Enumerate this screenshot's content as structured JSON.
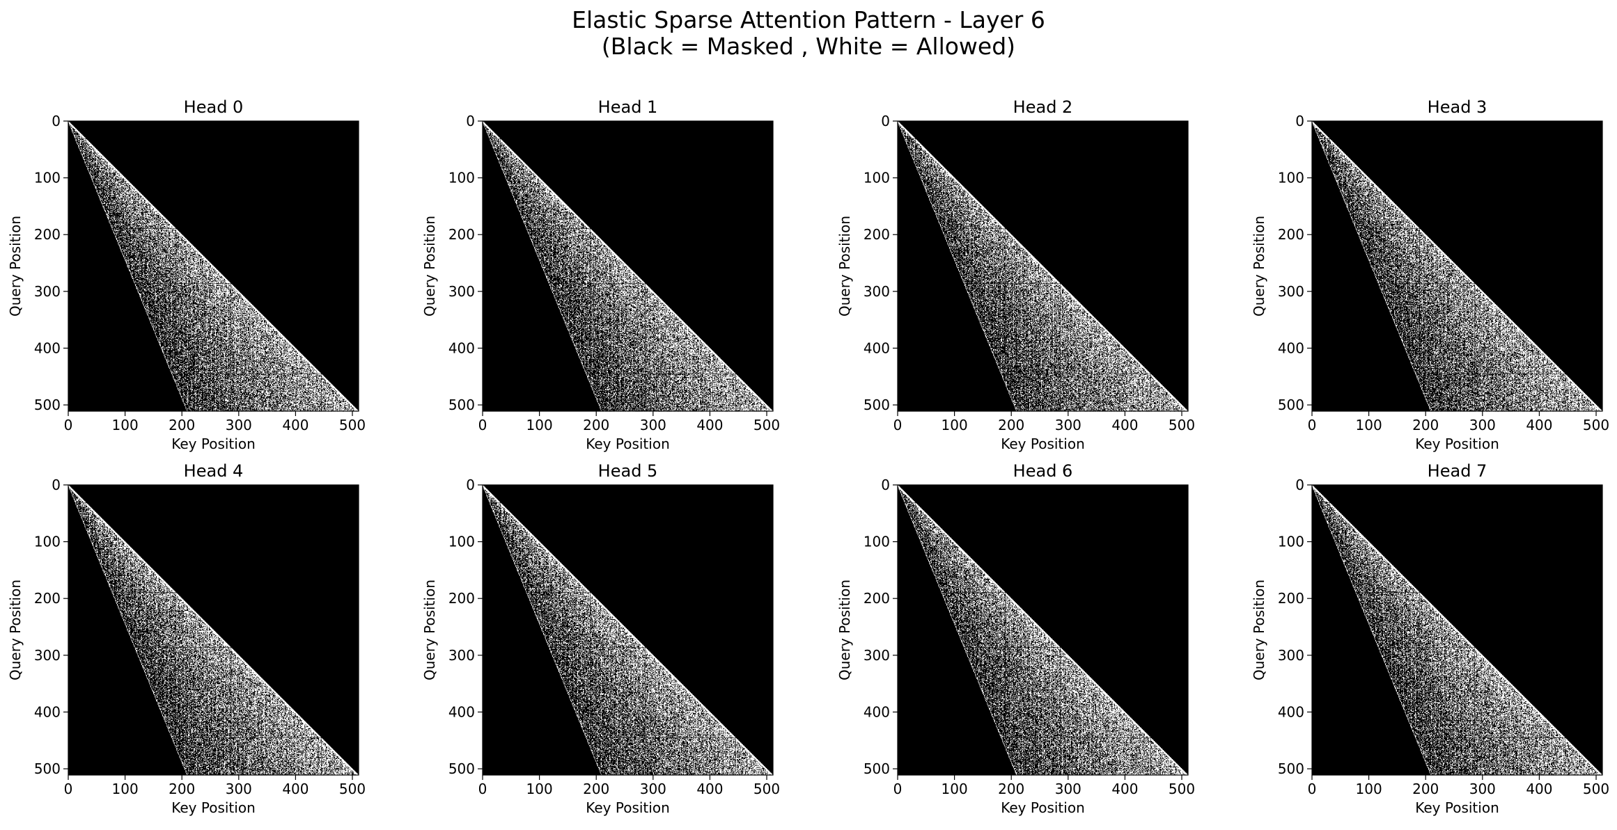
{
  "figure": {
    "title_line1": "Elastic Sparse Attention Pattern - Layer 6",
    "title_line2": "(Black = Masked , White = Allowed)"
  },
  "colors": {
    "masked": "#000000",
    "allowed": "#ffffff",
    "axis": "#000000",
    "background": "#ffffff"
  },
  "chart_data": [
    {
      "type": "heatmap",
      "title": "Head 0",
      "xlabel": "Key Position",
      "ylabel": "Query Position",
      "xticks": [
        0,
        100,
        200,
        300,
        400,
        500
      ],
      "yticks": [
        0,
        100,
        200,
        300,
        400,
        500
      ],
      "xlim": [
        0,
        511
      ],
      "ylim": [
        511,
        0
      ],
      "seq_len": 512,
      "values_legend": {
        "black": "Masked",
        "white": "Allowed"
      },
      "pattern": {
        "allowed_region": "band from diagonal (key = query) down to key ≈ 0.41 × query",
        "density_near_diagonal": "dense",
        "density_far": "sparse"
      }
    },
    {
      "type": "heatmap",
      "title": "Head 1",
      "xlabel": "Key Position",
      "ylabel": "Query Position",
      "xticks": [
        0,
        100,
        200,
        300,
        400,
        500
      ],
      "yticks": [
        0,
        100,
        200,
        300,
        400,
        500
      ],
      "xlim": [
        0,
        511
      ],
      "ylim": [
        511,
        0
      ],
      "seq_len": 512,
      "values_legend": {
        "black": "Masked",
        "white": "Allowed"
      },
      "pattern": {
        "allowed_region": "band from diagonal (key = query) down to key ≈ 0.41 × query",
        "density_near_diagonal": "dense",
        "density_far": "sparse"
      }
    },
    {
      "type": "heatmap",
      "title": "Head 2",
      "xlabel": "Key Position",
      "ylabel": "Query Position",
      "xticks": [
        0,
        100,
        200,
        300,
        400,
        500
      ],
      "yticks": [
        0,
        100,
        200,
        300,
        400,
        500
      ],
      "xlim": [
        0,
        511
      ],
      "ylim": [
        511,
        0
      ],
      "seq_len": 512,
      "values_legend": {
        "black": "Masked",
        "white": "Allowed"
      },
      "pattern": {
        "allowed_region": "band from diagonal (key = query) down to key ≈ 0.41 × query",
        "density_near_diagonal": "dense",
        "density_far": "sparse"
      }
    },
    {
      "type": "heatmap",
      "title": "Head 3",
      "xlabel": "Key Position",
      "ylabel": "Query Position",
      "xticks": [
        0,
        100,
        200,
        300,
        400,
        500
      ],
      "yticks": [
        0,
        100,
        200,
        300,
        400,
        500
      ],
      "xlim": [
        0,
        511
      ],
      "ylim": [
        511,
        0
      ],
      "seq_len": 512,
      "values_legend": {
        "black": "Masked",
        "white": "Allowed"
      },
      "pattern": {
        "allowed_region": "band from diagonal (key = query) down to key ≈ 0.41 × query",
        "density_near_diagonal": "dense",
        "density_far": "sparse"
      }
    },
    {
      "type": "heatmap",
      "title": "Head 4",
      "xlabel": "Key Position",
      "ylabel": "Query Position",
      "xticks": [
        0,
        100,
        200,
        300,
        400,
        500
      ],
      "yticks": [
        0,
        100,
        200,
        300,
        400,
        500
      ],
      "xlim": [
        0,
        511
      ],
      "ylim": [
        511,
        0
      ],
      "seq_len": 512,
      "values_legend": {
        "black": "Masked",
        "white": "Allowed"
      },
      "pattern": {
        "allowed_region": "band from diagonal (key = query) down to key ≈ 0.41 × query",
        "density_near_diagonal": "dense",
        "density_far": "sparse"
      }
    },
    {
      "type": "heatmap",
      "title": "Head 5",
      "xlabel": "Key Position",
      "ylabel": "Query Position",
      "xticks": [
        0,
        100,
        200,
        300,
        400,
        500
      ],
      "yticks": [
        0,
        100,
        200,
        300,
        400,
        500
      ],
      "xlim": [
        0,
        511
      ],
      "ylim": [
        511,
        0
      ],
      "seq_len": 512,
      "values_legend": {
        "black": "Masked",
        "white": "Allowed"
      },
      "pattern": {
        "allowed_region": "band from diagonal (key = query) down to key ≈ 0.41 × query",
        "density_near_diagonal": "dense",
        "density_far": "sparse"
      }
    },
    {
      "type": "heatmap",
      "title": "Head 6",
      "xlabel": "Key Position",
      "ylabel": "Query Position",
      "xticks": [
        0,
        100,
        200,
        300,
        400,
        500
      ],
      "yticks": [
        0,
        100,
        200,
        300,
        400,
        500
      ],
      "xlim": [
        0,
        511
      ],
      "ylim": [
        511,
        0
      ],
      "seq_len": 512,
      "values_legend": {
        "black": "Masked",
        "white": "Allowed"
      },
      "pattern": {
        "allowed_region": "band from diagonal (key = query) down to key ≈ 0.41 × query",
        "density_near_diagonal": "dense",
        "density_far": "sparse"
      }
    },
    {
      "type": "heatmap",
      "title": "Head 7",
      "xlabel": "Key Position",
      "ylabel": "Query Position",
      "xticks": [
        0,
        100,
        200,
        300,
        400,
        500
      ],
      "yticks": [
        0,
        100,
        200,
        300,
        400,
        500
      ],
      "xlim": [
        0,
        511
      ],
      "ylim": [
        511,
        0
      ],
      "seq_len": 512,
      "values_legend": {
        "black": "Masked",
        "white": "Allowed"
      },
      "pattern": {
        "allowed_region": "band from diagonal (key = query) down to key ≈ 0.41 × query",
        "density_near_diagonal": "dense",
        "density_far": "sparse"
      }
    }
  ]
}
